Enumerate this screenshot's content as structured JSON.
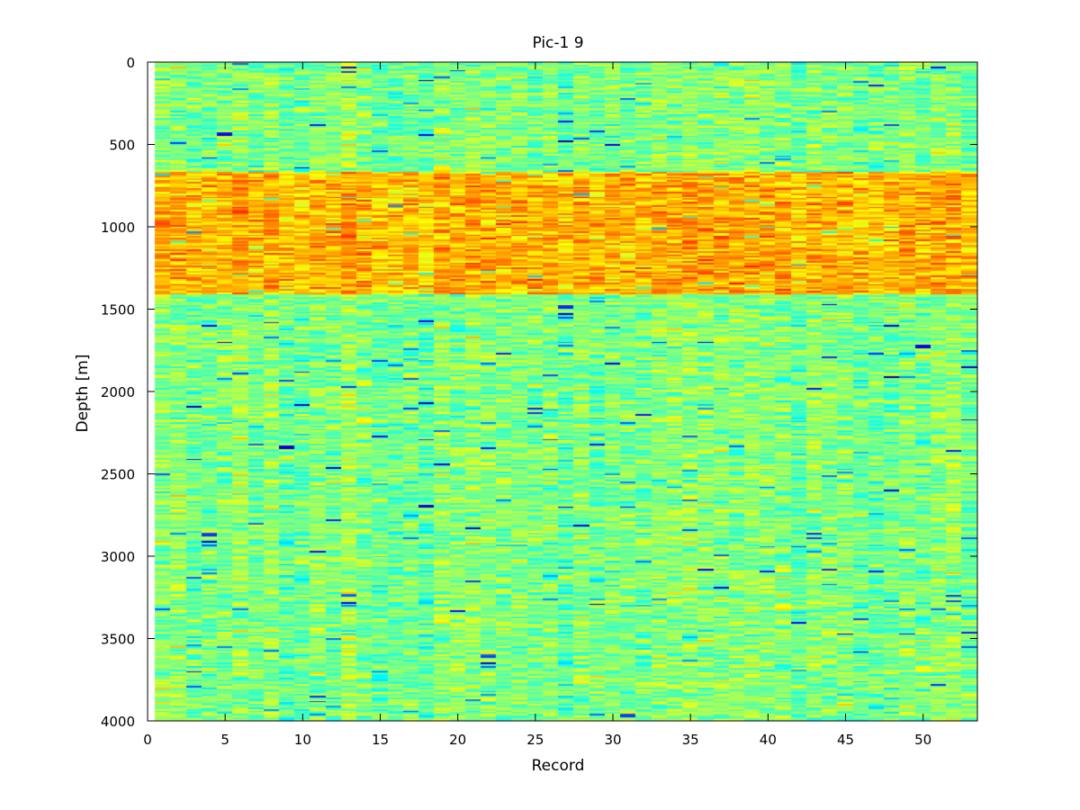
{
  "chart_data": {
    "type": "heatmap",
    "title": "Pic-1 9",
    "xlabel": "Record",
    "ylabel": "Depth [m]",
    "xlim": [
      0,
      53.5
    ],
    "ylim": [
      0,
      4000
    ],
    "y_reversed": true,
    "x_ticks": [
      0,
      5,
      10,
      15,
      20,
      25,
      30,
      35,
      40,
      45,
      50
    ],
    "y_ticks": [
      0,
      500,
      1000,
      1500,
      2000,
      2500,
      3000,
      3500,
      4000
    ],
    "records": 53,
    "depth_bins": 400,
    "colormap": "jet",
    "color_range": [
      0,
      1
    ],
    "background_level": 0.5,
    "high_band": {
      "depth_from": 670,
      "depth_to": 1410,
      "level": 0.7
    },
    "grid": false,
    "colorbar": false
  }
}
